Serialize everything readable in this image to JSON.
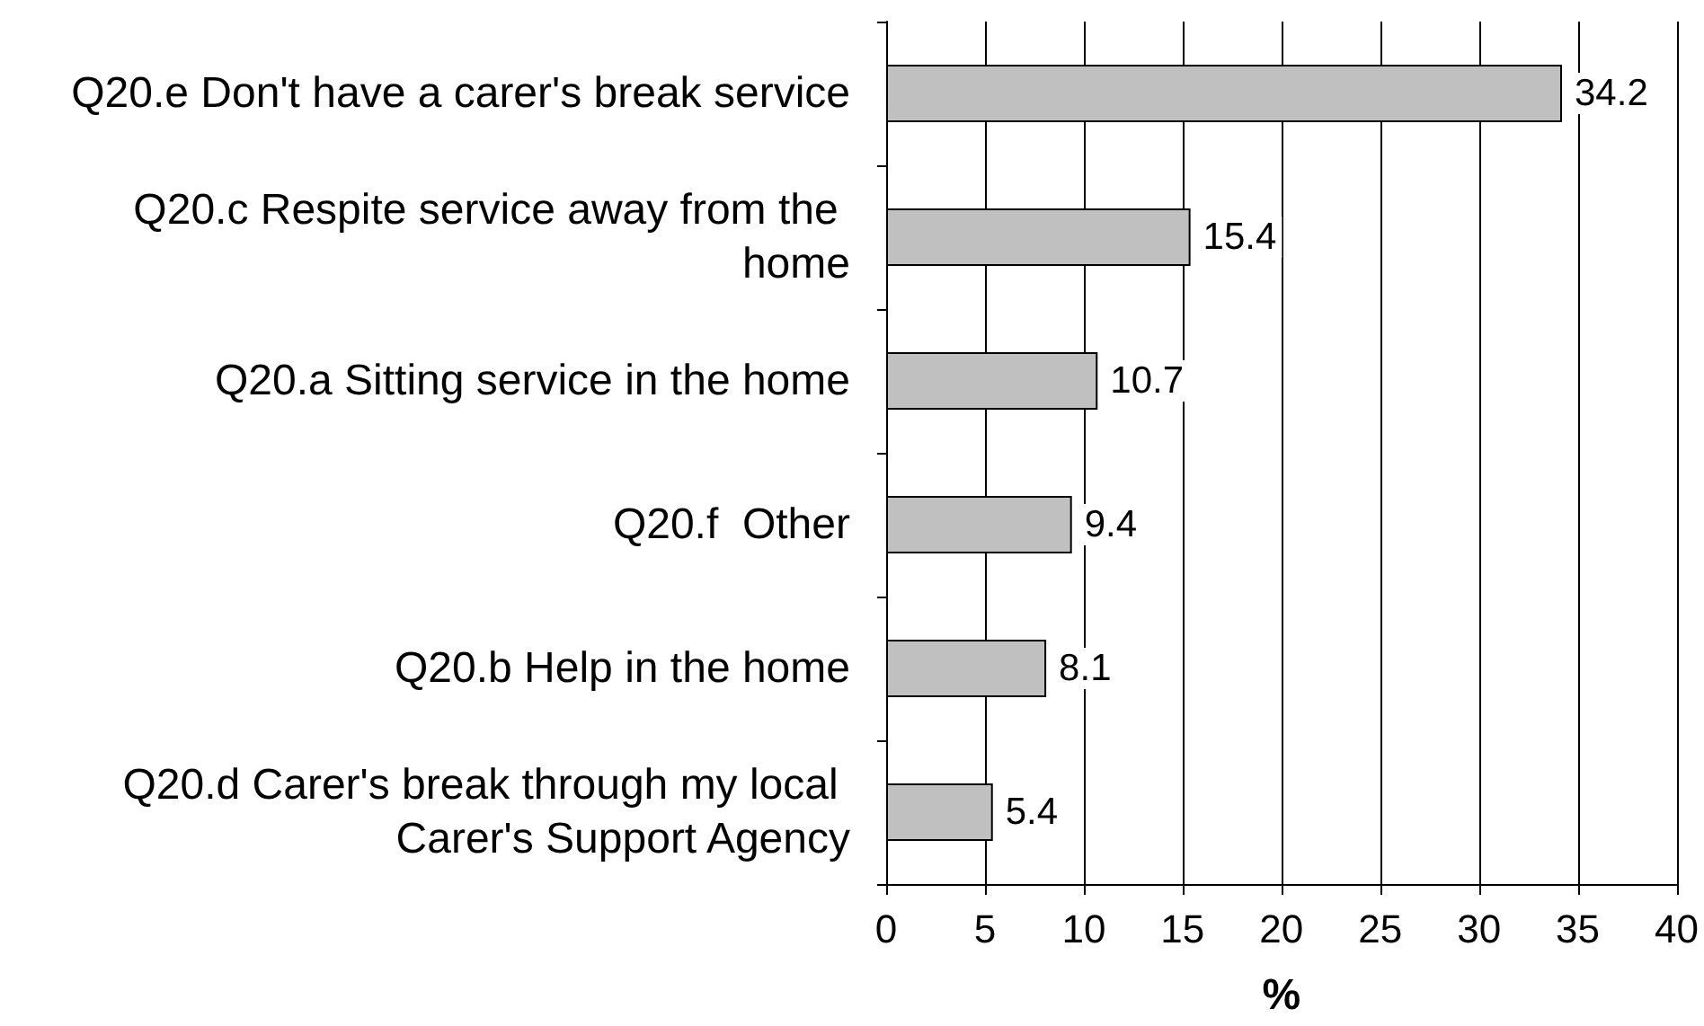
{
  "chart_data": {
    "type": "bar",
    "orientation": "horizontal",
    "xlabel": "%",
    "categories": [
      "Q20.e Don't have a carer's break service",
      "Q20.c Respite service away from the home",
      "Q20.a Sitting service in the home",
      "Q20.f  Other",
      "Q20.b Help in the home",
      "Q20.d Carer's break through my local Carer's Support Agency"
    ],
    "values": [
      34.2,
      15.4,
      10.7,
      9.4,
      8.1,
      5.4
    ],
    "color": "#c0c0c0",
    "xlim": [
      0,
      40
    ],
    "xticks": [
      0,
      5,
      10,
      15,
      20,
      25,
      30,
      35,
      40
    ],
    "grid": "x",
    "data_labels": true
  }
}
